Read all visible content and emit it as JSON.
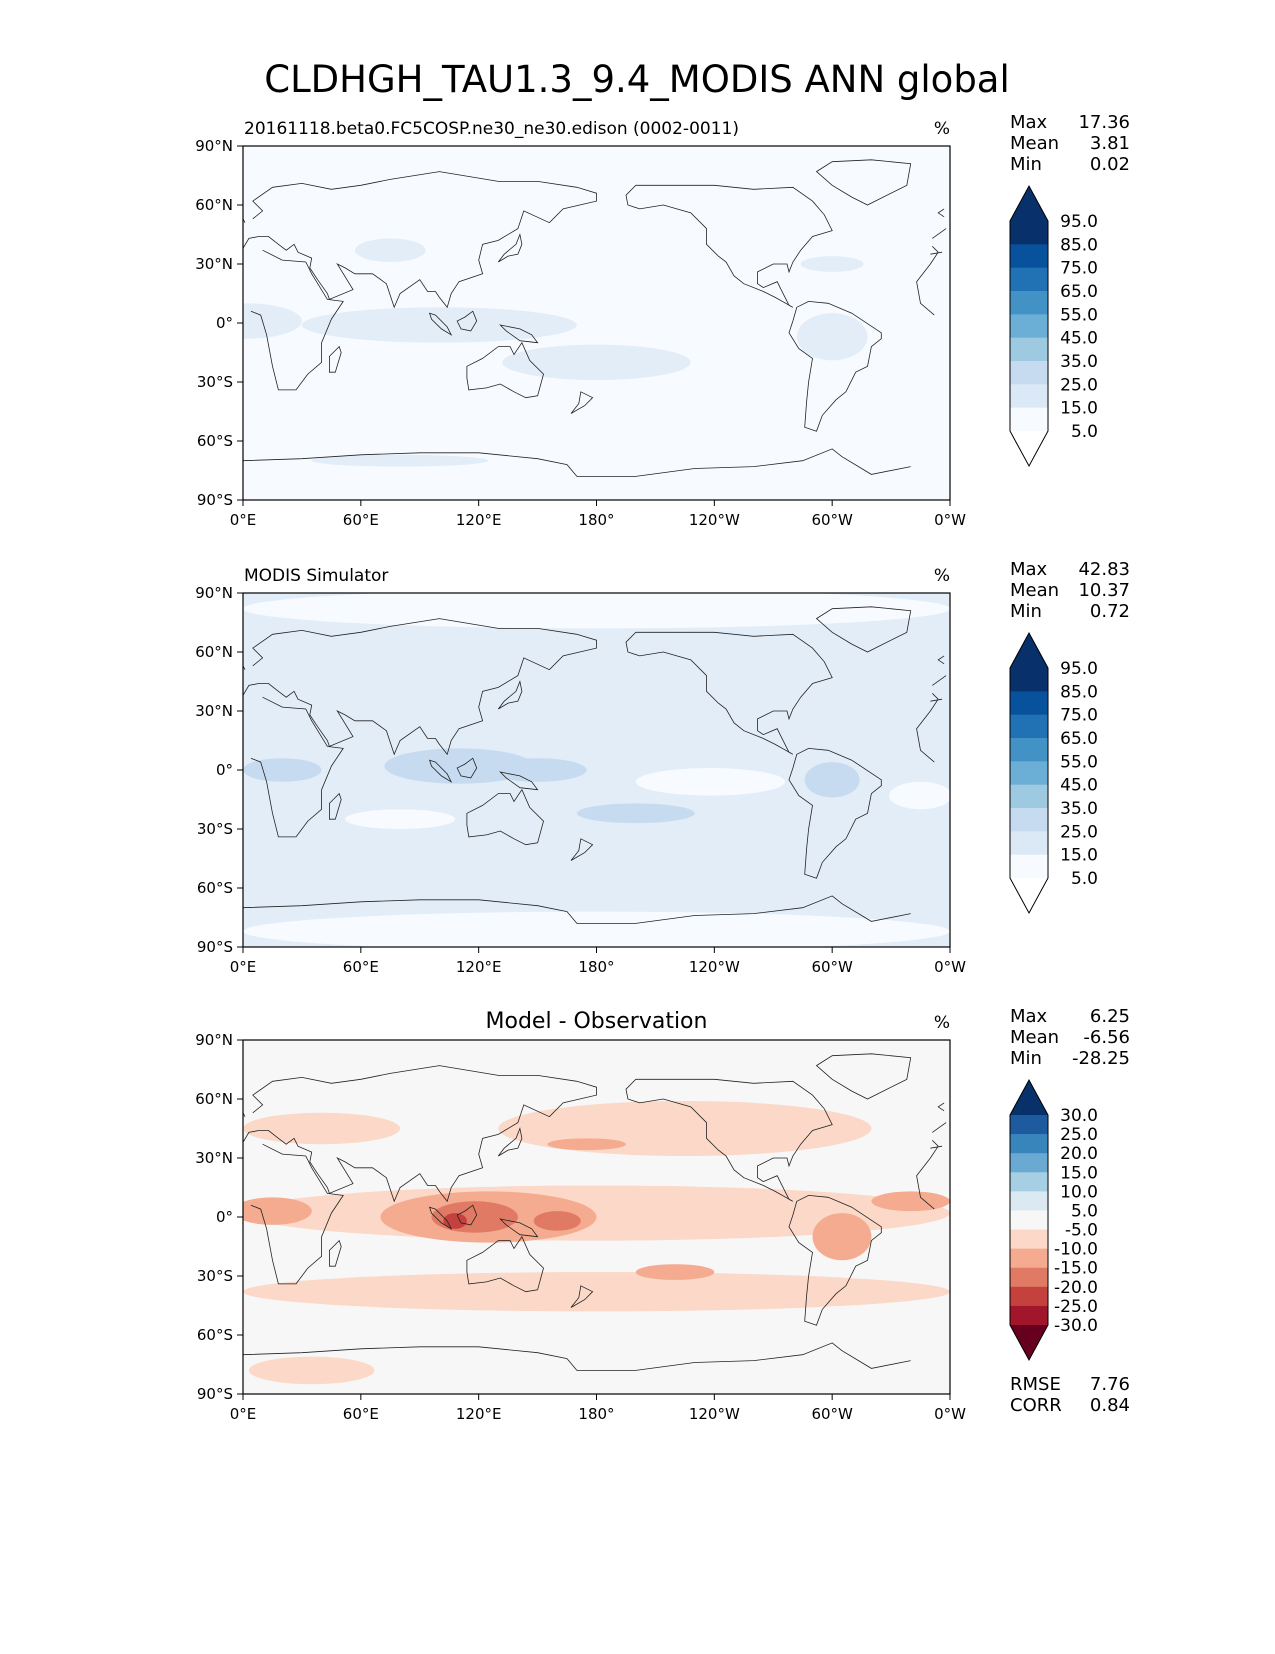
{
  "page_title": "CLDHGH_TAU1.3_9.4_MODIS ANN global",
  "chart_data": [
    {
      "type": "heatmap",
      "title": "20161118.beta0.FC5COSP.ne30_ne30.edison (0002-0011)",
      "units": "%",
      "stats": [
        {
          "label": "Max",
          "value": "17.36"
        },
        {
          "label": "Mean",
          "value": "3.81"
        },
        {
          "label": "Min",
          "value": "0.02"
        }
      ],
      "colorbar": {
        "levels": [
          "95.0",
          "85.0",
          "75.0",
          "65.0",
          "55.0",
          "45.0",
          "35.0",
          "25.0",
          "15.0",
          "5.0"
        ],
        "colors": [
          "#08306b",
          "#08519c",
          "#2171b5",
          "#4292c6",
          "#6baed6",
          "#9ecae1",
          "#c6dbef",
          "#dbe9f6",
          "#f7fbff"
        ],
        "over_color": "#08306b",
        "under_color": "#ffffff"
      },
      "xticks": [
        "0°E",
        "60°E",
        "120°E",
        "180°",
        "120°W",
        "60°W",
        "0°W"
      ],
      "yticks": [
        "90°N",
        "60°N",
        "30°N",
        "0°",
        "30°S",
        "60°S",
        "90°S"
      ],
      "xlim": [
        0,
        360
      ],
      "ylim": [
        -90,
        90
      ],
      "background": "#f7fbff",
      "fill_regions": [
        {
          "color": "#e3edf8",
          "lon": 2,
          "lat": 1,
          "rlon": 28,
          "rlat": 9
        },
        {
          "color": "#e3edf8",
          "lon": 100,
          "lat": -1,
          "rlon": 70,
          "rlat": 9
        },
        {
          "color": "#e3edf8",
          "lon": 180,
          "lat": -20,
          "rlon": 48,
          "rlat": 9
        },
        {
          "color": "#e3edf8",
          "lon": 75,
          "lat": 37,
          "rlon": 18,
          "rlat": 6
        },
        {
          "color": "#e3edf8",
          "lon": 300,
          "lat": 30,
          "rlon": 16,
          "rlat": 4
        },
        {
          "color": "#e3edf8",
          "lon": 300,
          "lat": -7,
          "rlon": 18,
          "rlat": 12
        },
        {
          "color": "#e3edf8",
          "lon": 80,
          "lat": -70,
          "rlon": 45,
          "rlat": 3
        }
      ],
      "stats_extra": []
    },
    {
      "type": "heatmap",
      "title": "MODIS Simulator",
      "units": "%",
      "stats": [
        {
          "label": "Max",
          "value": "42.83"
        },
        {
          "label": "Mean",
          "value": "10.37"
        },
        {
          "label": "Min",
          "value": "0.72"
        }
      ],
      "colorbar": {
        "levels": [
          "95.0",
          "85.0",
          "75.0",
          "65.0",
          "55.0",
          "45.0",
          "35.0",
          "25.0",
          "15.0",
          "5.0"
        ],
        "colors": [
          "#08306b",
          "#08519c",
          "#2171b5",
          "#4292c6",
          "#6baed6",
          "#9ecae1",
          "#c6dbef",
          "#dbe9f6",
          "#f7fbff"
        ],
        "over_color": "#08306b",
        "under_color": "#ffffff"
      },
      "xticks": [
        "0°E",
        "60°E",
        "120°E",
        "180°",
        "120°W",
        "60°W",
        "0°W"
      ],
      "yticks": [
        "90°N",
        "60°N",
        "30°N",
        "0°",
        "30°S",
        "60°S",
        "90°S"
      ],
      "xlim": [
        0,
        360
      ],
      "ylim": [
        -90,
        90
      ],
      "background": "#e3edf8",
      "fill_regions": [
        {
          "color": "#f7fbff",
          "lon": 180,
          "lat": 82,
          "rlon": 180,
          "rlat": 10
        },
        {
          "color": "#f7fbff",
          "lon": 180,
          "lat": -82,
          "rlon": 180,
          "rlat": 10
        },
        {
          "color": "#f7fbff",
          "lon": 238,
          "lat": -6,
          "rlon": 38,
          "rlat": 7
        },
        {
          "color": "#f7fbff",
          "lon": 80,
          "lat": -25,
          "rlon": 28,
          "rlat": 5
        },
        {
          "color": "#f7fbff",
          "lon": 345,
          "lat": -13,
          "rlon": 16,
          "rlat": 7
        },
        {
          "color": "#c6dbef",
          "lon": 110,
          "lat": 2,
          "rlon": 38,
          "rlat": 9
        },
        {
          "color": "#c6dbef",
          "lon": 150,
          "lat": 0,
          "rlon": 25,
          "rlat": 6
        },
        {
          "color": "#c6dbef",
          "lon": 20,
          "lat": 0,
          "rlon": 20,
          "rlat": 6
        },
        {
          "color": "#c6dbef",
          "lon": 300,
          "lat": -5,
          "rlon": 14,
          "rlat": 9
        },
        {
          "color": "#c6dbef",
          "lon": 200,
          "lat": -22,
          "rlon": 30,
          "rlat": 5
        }
      ],
      "stats_extra": []
    },
    {
      "type": "heatmap",
      "title": "Model - Observation",
      "units": "%",
      "stats": [
        {
          "label": "Max",
          "value": "6.25"
        },
        {
          "label": "Mean",
          "value": "-6.56"
        },
        {
          "label": "Min",
          "value": "-28.25"
        }
      ],
      "colorbar": {
        "levels": [
          "30.0",
          "25.0",
          "20.0",
          "15.0",
          "10.0",
          "5.0",
          "-5.0",
          "-10.0",
          "-15.0",
          "-20.0",
          "-25.0",
          "-30.0"
        ],
        "colors": [
          "#1d5a9e",
          "#3885bc",
          "#6aa9d2",
          "#a7cfe4",
          "#dbeaf2",
          "#f7f7f7",
          "#fbd8c7",
          "#f4ab8f",
          "#e17a64",
          "#c5413d",
          "#a1162b"
        ],
        "over_color": "#08306b",
        "under_color": "#67001f"
      },
      "xticks": [
        "0°E",
        "60°E",
        "120°E",
        "180°",
        "120°W",
        "60°W",
        "0°W"
      ],
      "yticks": [
        "90°N",
        "60°N",
        "30°N",
        "0°",
        "30°S",
        "60°S",
        "90°S"
      ],
      "xlim": [
        0,
        360
      ],
      "ylim": [
        -90,
        90
      ],
      "background": "#f7f7f7",
      "fill_regions": [
        {
          "color": "#fbd8c7",
          "lon": 180,
          "lat": -38,
          "rlon": 180,
          "rlat": 10
        },
        {
          "color": "#fbd8c7",
          "lon": 180,
          "lat": 2,
          "rlon": 180,
          "rlat": 14
        },
        {
          "color": "#fbd8c7",
          "lon": 225,
          "lat": 45,
          "rlon": 95,
          "rlat": 14
        },
        {
          "color": "#fbd8c7",
          "lon": 40,
          "lat": 45,
          "rlon": 40,
          "rlat": 8
        },
        {
          "color": "#fbd8c7",
          "lon": 35,
          "lat": -78,
          "rlon": 32,
          "rlat": 7
        },
        {
          "color": "#f4ab8f",
          "lon": 15,
          "lat": 3,
          "rlon": 20,
          "rlat": 7
        },
        {
          "color": "#f4ab8f",
          "lon": 125,
          "lat": 0,
          "rlon": 55,
          "rlat": 13
        },
        {
          "color": "#f4ab8f",
          "lon": 305,
          "lat": -10,
          "rlon": 15,
          "rlat": 12
        },
        {
          "color": "#f4ab8f",
          "lon": 340,
          "lat": 8,
          "rlon": 20,
          "rlat": 5
        },
        {
          "color": "#f4ab8f",
          "lon": 220,
          "lat": -28,
          "rlon": 20,
          "rlat": 4
        },
        {
          "color": "#f4ab8f",
          "lon": 175,
          "lat": 37,
          "rlon": 20,
          "rlat": 3
        },
        {
          "color": "#e17a64",
          "lon": 118,
          "lat": 0,
          "rlon": 22,
          "rlat": 8
        },
        {
          "color": "#e17a64",
          "lon": 160,
          "lat": -2,
          "rlon": 12,
          "rlat": 5
        },
        {
          "color": "#c5413d",
          "lon": 108,
          "lat": -2,
          "rlon": 6,
          "rlat": 4
        }
      ],
      "stats_extra": [
        {
          "label": "RMSE",
          "value": "7.76"
        },
        {
          "label": "CORR",
          "value": "0.84"
        }
      ]
    }
  ]
}
